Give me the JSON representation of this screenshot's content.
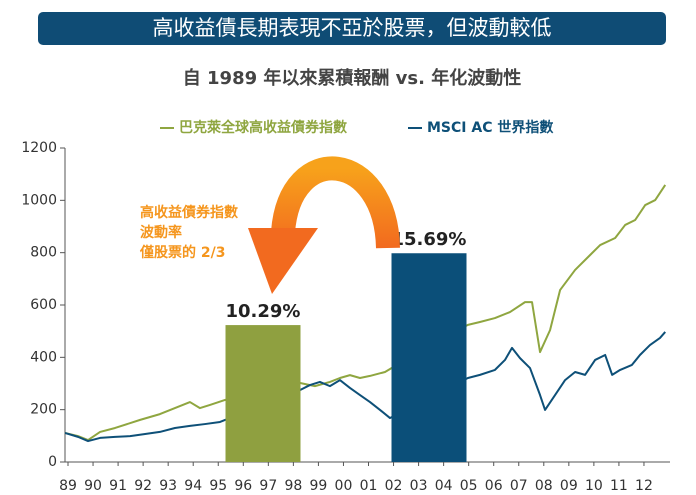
{
  "chart_data": {
    "type": "line",
    "title": "高收益債長期表現不亞於股票，但波動較低",
    "subtitle": "自 1989 年以來累積報酬 vs. 年化波動性",
    "annotation": [
      "高收益債券指數",
      "波動率",
      "僅股票的 2/3"
    ],
    "xlim": [
      1988.88,
      2013.04
    ],
    "xticks": [
      {
        "value": 1989,
        "label": "89"
      },
      {
        "value": 1990,
        "label": "90"
      },
      {
        "value": 1991,
        "label": "91"
      },
      {
        "value": 1992,
        "label": "92"
      },
      {
        "value": 1993,
        "label": "93"
      },
      {
        "value": 1994,
        "label": "94"
      },
      {
        "value": 1995,
        "label": "95"
      },
      {
        "value": 1996,
        "label": "96"
      },
      {
        "value": 1997,
        "label": "97"
      },
      {
        "value": 1998,
        "label": "98"
      },
      {
        "value": 1999,
        "label": "99"
      },
      {
        "value": 2000,
        "label": "00"
      },
      {
        "value": 2001,
        "label": "01"
      },
      {
        "value": 2002,
        "label": "02"
      },
      {
        "value": 2003,
        "label": "03"
      },
      {
        "value": 2004,
        "label": "04"
      },
      {
        "value": 2005,
        "label": "05"
      },
      {
        "value": 2006,
        "label": "06"
      },
      {
        "value": 2007,
        "label": "07"
      },
      {
        "value": 2008,
        "label": "08"
      },
      {
        "value": 2009,
        "label": "09"
      },
      {
        "value": 2010,
        "label": "10"
      },
      {
        "value": 2011,
        "label": "11"
      },
      {
        "value": 2012,
        "label": "12"
      }
    ],
    "ylim": [
      0,
      1200
    ],
    "yticks": [
      0,
      200,
      400,
      600,
      800,
      1000,
      1200
    ],
    "series": [
      {
        "name": "巴克萊全球高收益債券指數",
        "color": "#8fa640",
        "x": [
          1988.88,
          1989.4,
          1989.8,
          1990.28,
          1990.88,
          1991.88,
          1992.67,
          1993.27,
          1993.87,
          1994.27,
          1994.67,
          1995.27,
          1996.75,
          1998.27,
          1998.86,
          1999.46,
          1999.86,
          2000.26,
          2000.66,
          2001.06,
          2001.66,
          2003.46,
          2004.97,
          2005.45,
          2006.05,
          2006.65,
          2007.25,
          2007.53,
          2007.85,
          2008.25,
          2008.65,
          2009.25,
          2009.85,
          2010.25,
          2010.85,
          2011.25,
          2011.65,
          2012.05,
          2012.45,
          2012.85
        ],
        "values": [
          111,
          99,
          84,
          115,
          130,
          161,
          183,
          206,
          229,
          206,
          218,
          237,
          275,
          302,
          290,
          306,
          321,
          332,
          321,
          329,
          344,
          447,
          524,
          535,
          550,
          573,
          611,
          611,
          420,
          504,
          657,
          734,
          791,
          829,
          856,
          906,
          925,
          982,
          1001,
          1059
        ]
      },
      {
        "name": "MSCI AC 世界指數",
        "color": "#0e5078",
        "x": [
          1988.88,
          1989.4,
          1989.8,
          1990.28,
          1990.88,
          1991.48,
          1992.08,
          1992.67,
          1993.27,
          1993.87,
          1994.47,
          1995.07,
          1998.27,
          1998.66,
          1999.06,
          1999.46,
          1999.86,
          2000.26,
          2000.66,
          2001.06,
          2001.46,
          2001.86,
          2004.97,
          2005.45,
          2006.05,
          2006.45,
          2006.73,
          2007.05,
          2007.45,
          2007.85,
          2008.05,
          2008.45,
          2008.85,
          2009.25,
          2009.65,
          2010.05,
          2010.45,
          2010.73,
          2011.05,
          2011.52,
          2011.84,
          2012.24,
          2012.64,
          2012.85
        ],
        "values": [
          111,
          96,
          80,
          92,
          96,
          99,
          107,
          115,
          130,
          138,
          145,
          153,
          275,
          294,
          306,
          290,
          313,
          283,
          256,
          229,
          199,
          168,
          321,
          333,
          352,
          390,
          436,
          397,
          359,
          256,
          199,
          256,
          313,
          344,
          333,
          390,
          409,
          333,
          352,
          371,
          409,
          447,
          474,
          497
        ]
      }
    ],
    "bars": {
      "values": [
        10.29,
        15.69
      ],
      "value_labels": [
        "10.29%",
        "15.69%"
      ],
      "colors": [
        "#8fa040",
        "#0b4f79"
      ]
    },
    "y2lim": [
      0,
      23.6
    ]
  }
}
